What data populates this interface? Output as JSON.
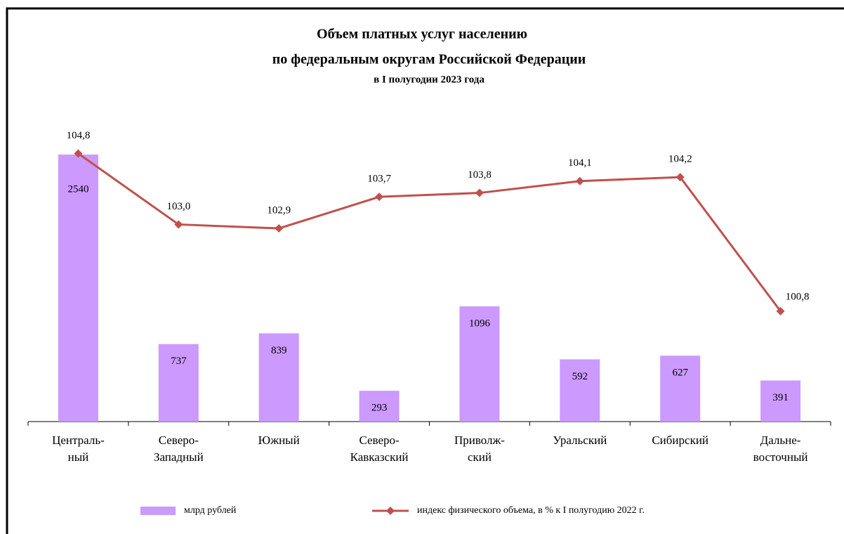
{
  "chart_data": {
    "type": "bar_line",
    "title": "Объем платных  услуг населению",
    "subtitle": "по федеральным  округам  Российской  Федерации",
    "subtitle2": "в I полугодии 2023 года",
    "categories": [
      [
        "Централь-",
        "ный"
      ],
      [
        "Северо-",
        "Западный"
      ],
      [
        "Южный"
      ],
      [
        "Северо-",
        "Кавказский"
      ],
      [
        "Приволж-",
        "ский"
      ],
      [
        "Уральский"
      ],
      [
        "Сибирский"
      ],
      [
        "Дальне-",
        "восточный"
      ]
    ],
    "ylim": [
      0,
      2700
    ],
    "y2lim": [
      98,
      105.2
    ],
    "series": [
      {
        "name": "млрд рублей",
        "type": "bar",
        "color": "#cc99ff",
        "values": [
          2540,
          737,
          839,
          293,
          1096,
          592,
          627,
          391
        ]
      },
      {
        "name": "индекс физического объема, в % к I полугодию 2022 г.",
        "type": "line",
        "axis": "y2",
        "color": "#c0504d",
        "values": [
          104.8,
          103.0,
          102.9,
          103.7,
          103.8,
          104.1,
          104.2,
          100.8
        ],
        "value_labels": [
          "104,8",
          "103,0",
          "102,9",
          "103,7",
          "103,8",
          "104,1",
          "104,2",
          "100,8"
        ]
      }
    ]
  }
}
